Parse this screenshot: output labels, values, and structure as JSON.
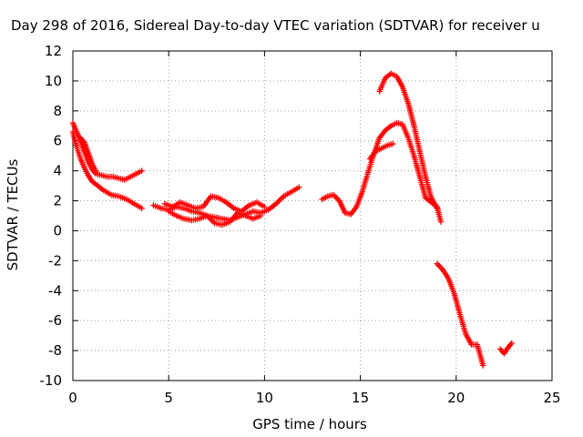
{
  "chart_data": {
    "type": "scatter",
    "title": "Day 298 of 2016, Sidereal Day-to-day VTEC variation (SDTVAR) for receiver u",
    "xlabel": "GPS time / hours",
    "ylabel": "SDTVAR / TECUs",
    "xlim": [
      0,
      25
    ],
    "ylim": [
      -10,
      12
    ],
    "xticks": [
      "0",
      "5",
      "10",
      "15",
      "20",
      "25"
    ],
    "yticks": [
      "-10",
      "-8",
      "-6",
      "-4",
      "-2",
      "0",
      "2",
      "4",
      "6",
      "8",
      "10",
      "12"
    ],
    "grid": true,
    "marker": "+",
    "colors": {
      "series": "#ff0000",
      "grid": "#a0a0a0",
      "axis": "#000000"
    },
    "series": [
      {
        "x": [
          0.0,
          0.2,
          0.4,
          0.6,
          0.8,
          1.0,
          1.2,
          1.5,
          1.8,
          2.1,
          2.4,
          2.7,
          3.0,
          3.3,
          3.6
        ],
        "y": [
          7.2,
          6.6,
          6.0,
          5.3,
          4.6,
          4.1,
          3.8,
          3.7,
          3.6,
          3.6,
          3.5,
          3.4,
          3.6,
          3.8,
          4.0
        ]
      },
      {
        "x": [
          0.0,
          0.2,
          0.4,
          0.6,
          0.8,
          1.0,
          1.3,
          1.6,
          2.0,
          2.4,
          2.8,
          3.2,
          3.6
        ],
        "y": [
          6.6,
          5.6,
          4.8,
          4.2,
          3.7,
          3.3,
          3.0,
          2.7,
          2.4,
          2.3,
          2.1,
          1.8,
          1.5
        ]
      },
      {
        "x": [
          0.4,
          0.6,
          0.8,
          1.0,
          1.2
        ],
        "y": [
          6.2,
          5.9,
          5.2,
          4.5,
          4.0
        ]
      },
      {
        "x": [
          4.2,
          4.6,
          5.0,
          5.4,
          5.8,
          6.2,
          6.6,
          7.0,
          7.4,
          7.8,
          8.2,
          8.6,
          9.0,
          9.4,
          9.8,
          10.2,
          10.6,
          11.0,
          11.4,
          11.8
        ],
        "y": [
          1.7,
          1.5,
          1.4,
          1.6,
          1.5,
          1.3,
          1.2,
          1.0,
          0.9,
          0.8,
          0.7,
          0.9,
          1.1,
          1.3,
          1.2,
          1.4,
          1.8,
          2.3,
          2.6,
          2.9
        ]
      },
      {
        "x": [
          4.8,
          5.2,
          5.6,
          6.0,
          6.4,
          6.8,
          7.2,
          7.6,
          8.0,
          8.4,
          8.8,
          9.2,
          9.6,
          10.0
        ],
        "y": [
          1.8,
          1.6,
          1.9,
          1.7,
          1.5,
          1.6,
          2.3,
          2.2,
          1.9,
          1.5,
          1.3,
          1.7,
          1.9,
          1.6
        ]
      },
      {
        "x": [
          5.0,
          5.4,
          5.8,
          6.2,
          6.6,
          7.0,
          7.4,
          7.8,
          8.2,
          8.6,
          9.0,
          9.4,
          9.8
        ],
        "y": [
          1.3,
          1.0,
          0.8,
          0.7,
          0.8,
          1.0,
          0.5,
          0.4,
          0.6,
          1.2,
          1.0,
          0.8,
          1.0
        ]
      },
      {
        "x": [
          13.0,
          13.3,
          13.6,
          13.9,
          14.2,
          14.5,
          14.8,
          15.1,
          15.4,
          15.7,
          16.0,
          16.3,
          16.6,
          16.9,
          17.2,
          17.5,
          17.8,
          18.1,
          18.4,
          18.7,
          19.0,
          19.2
        ],
        "y": [
          2.1,
          2.3,
          2.4,
          2.0,
          1.2,
          1.1,
          1.6,
          2.6,
          3.9,
          5.1,
          6.2,
          6.7,
          7.0,
          7.2,
          7.1,
          6.2,
          5.0,
          3.6,
          2.2,
          1.9,
          1.6,
          0.6
        ]
      },
      {
        "x": [
          15.5,
          15.8,
          16.1,
          16.4,
          16.7
        ],
        "y": [
          4.8,
          5.3,
          5.5,
          5.7,
          5.8
        ]
      },
      {
        "x": [
          16.0,
          16.3,
          16.6,
          16.9,
          17.2,
          17.5,
          17.8,
          18.1,
          18.4,
          18.7,
          19.0
        ],
        "y": [
          9.3,
          10.2,
          10.5,
          10.3,
          9.6,
          8.5,
          7.0,
          5.3,
          3.6,
          2.2,
          1.5
        ]
      },
      {
        "x": [
          19.0,
          19.3,
          19.6,
          19.9,
          20.2,
          20.5,
          20.8,
          21.1,
          21.4
        ],
        "y": [
          -2.2,
          -2.6,
          -3.2,
          -4.2,
          -5.6,
          -6.9,
          -7.6,
          -7.6,
          -9.0
        ]
      },
      {
        "x": [
          22.3,
          22.5,
          22.7,
          22.9
        ],
        "y": [
          -7.9,
          -8.2,
          -7.8,
          -7.5
        ]
      }
    ]
  }
}
